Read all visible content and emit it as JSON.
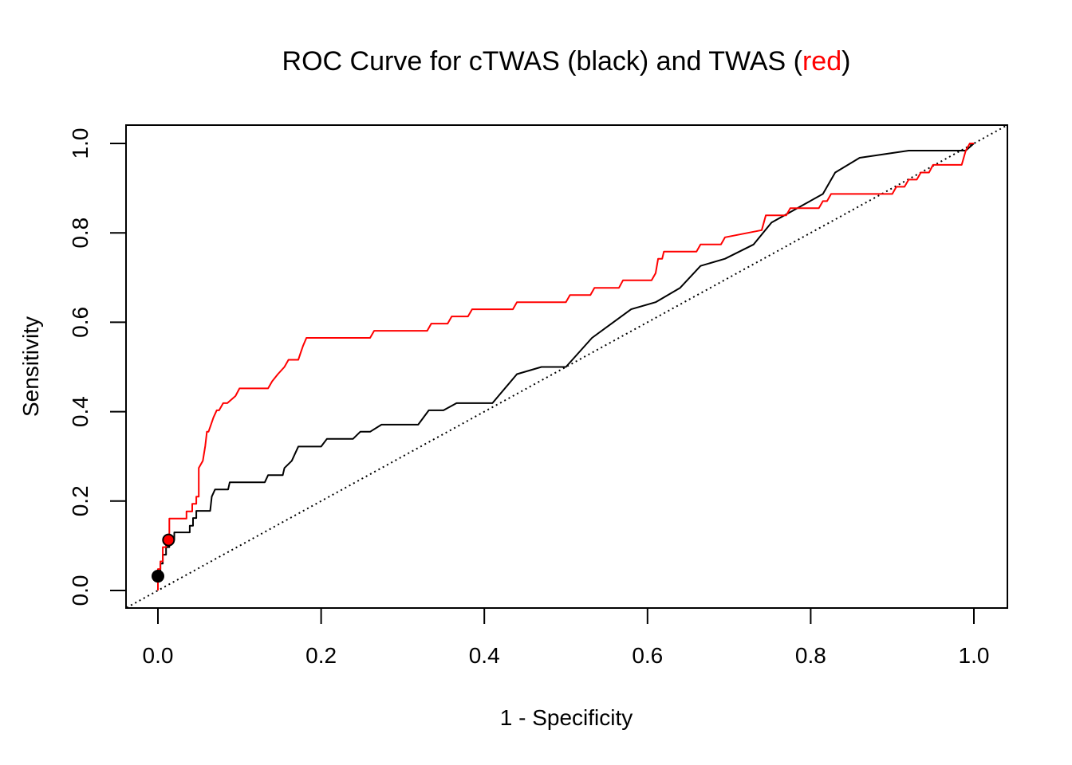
{
  "chart_data": {
    "type": "line",
    "title": {
      "prefix": "ROC Curve for cTWAS (black) and TWAS (",
      "highlight": "red",
      "suffix": ")",
      "highlight_color": "#ff0000"
    },
    "xlabel": "1 - Specificity",
    "ylabel": "Sensitivity",
    "xlim": [
      0,
      1
    ],
    "ylim": [
      0,
      1
    ],
    "x_ticks": [
      0.0,
      0.2,
      0.4,
      0.6,
      0.8,
      1.0
    ],
    "y_ticks": [
      0.0,
      0.2,
      0.4,
      0.6,
      0.8,
      1.0
    ],
    "x_tick_labels": [
      "0.0",
      "0.2",
      "0.4",
      "0.6",
      "0.8",
      "1.0"
    ],
    "y_tick_labels": [
      "0.0",
      "0.2",
      "0.4",
      "0.6",
      "0.8",
      "1.0"
    ],
    "grid": false,
    "reference_line": {
      "style": "dotted",
      "from": [
        0,
        0
      ],
      "to": [
        1,
        1
      ],
      "color": "#000000"
    },
    "series": [
      {
        "color": "#000000",
        "x": [
          0,
          0,
          0.003,
          0.003,
          0.006,
          0.006,
          0.01,
          0.01,
          0.014,
          0.014,
          0.02,
          0.02,
          0.039,
          0.039,
          0.043,
          0.043,
          0.047,
          0.047,
          0.064,
          0.066,
          0.07,
          0.086,
          0.088,
          0.131,
          0.135,
          0.153,
          0.155,
          0.164,
          0.168,
          0.172,
          0.178,
          0.2,
          0.207,
          0.239,
          0.248,
          0.26,
          0.274,
          0.319,
          0.332,
          0.35,
          0.366,
          0.41,
          0.44,
          0.47,
          0.5,
          0.532,
          0.58,
          0.61,
          0.64,
          0.665,
          0.695,
          0.73,
          0.752,
          0.815,
          0.83,
          0.86,
          0.92,
          0.99,
          1.0
        ],
        "y": [
          0,
          0.032,
          0.032,
          0.06,
          0.06,
          0.08,
          0.08,
          0.097,
          0.097,
          0.113,
          0.113,
          0.13,
          0.13,
          0.145,
          0.145,
          0.162,
          0.162,
          0.178,
          0.178,
          0.21,
          0.226,
          0.226,
          0.242,
          0.242,
          0.258,
          0.258,
          0.274,
          0.29,
          0.306,
          0.322,
          0.322,
          0.322,
          0.339,
          0.339,
          0.355,
          0.355,
          0.371,
          0.371,
          0.403,
          0.403,
          0.419,
          0.419,
          0.484,
          0.5,
          0.5,
          0.565,
          0.629,
          0.645,
          0.677,
          0.726,
          0.742,
          0.774,
          0.823,
          0.887,
          0.935,
          0.968,
          0.984,
          0.984,
          1.0
        ]
      },
      {
        "color": "#ff0000",
        "x": [
          0,
          0,
          0.003,
          0.003,
          0.006,
          0.006,
          0.01,
          0.01,
          0.014,
          0.014,
          0.035,
          0.035,
          0.042,
          0.042,
          0.047,
          0.047,
          0.05,
          0.05,
          0.055,
          0.058,
          0.06,
          0.062,
          0.065,
          0.068,
          0.072,
          0.075,
          0.08,
          0.085,
          0.095,
          0.1,
          0.135,
          0.14,
          0.147,
          0.155,
          0.16,
          0.172,
          0.175,
          0.178,
          0.182,
          0.26,
          0.265,
          0.33,
          0.335,
          0.355,
          0.36,
          0.38,
          0.385,
          0.435,
          0.44,
          0.5,
          0.505,
          0.53,
          0.535,
          0.565,
          0.57,
          0.605,
          0.61,
          0.613,
          0.618,
          0.62,
          0.625,
          0.66,
          0.665,
          0.69,
          0.695,
          0.74,
          0.745,
          0.77,
          0.775,
          0.8,
          0.805,
          0.81,
          0.815,
          0.82,
          0.825,
          0.9,
          0.905,
          0.915,
          0.92,
          0.93,
          0.935,
          0.945,
          0.95,
          0.96,
          0.965,
          0.985,
          0.99,
          0.995,
          1.0
        ],
        "y": [
          0,
          0.048,
          0.048,
          0.065,
          0.065,
          0.097,
          0.097,
          0.113,
          0.113,
          0.161,
          0.161,
          0.177,
          0.177,
          0.194,
          0.194,
          0.21,
          0.21,
          0.274,
          0.29,
          0.323,
          0.355,
          0.355,
          0.371,
          0.387,
          0.403,
          0.403,
          0.419,
          0.419,
          0.435,
          0.452,
          0.452,
          0.468,
          0.484,
          0.5,
          0.516,
          0.516,
          0.532,
          0.548,
          0.565,
          0.565,
          0.581,
          0.581,
          0.597,
          0.597,
          0.613,
          0.613,
          0.629,
          0.629,
          0.645,
          0.645,
          0.661,
          0.661,
          0.677,
          0.677,
          0.694,
          0.694,
          0.71,
          0.742,
          0.742,
          0.758,
          0.758,
          0.758,
          0.774,
          0.774,
          0.79,
          0.806,
          0.839,
          0.839,
          0.855,
          0.855,
          0.855,
          0.855,
          0.871,
          0.871,
          0.887,
          0.887,
          0.903,
          0.903,
          0.919,
          0.919,
          0.935,
          0.935,
          0.952,
          0.952,
          0.952,
          0.952,
          0.984,
          1.0,
          1.0
        ]
      }
    ],
    "points": [
      {
        "x": 0.0,
        "y": 0.032,
        "fill": "#000000"
      },
      {
        "x": 0.013,
        "y": 0.113,
        "fill": "#ff0000"
      }
    ]
  }
}
